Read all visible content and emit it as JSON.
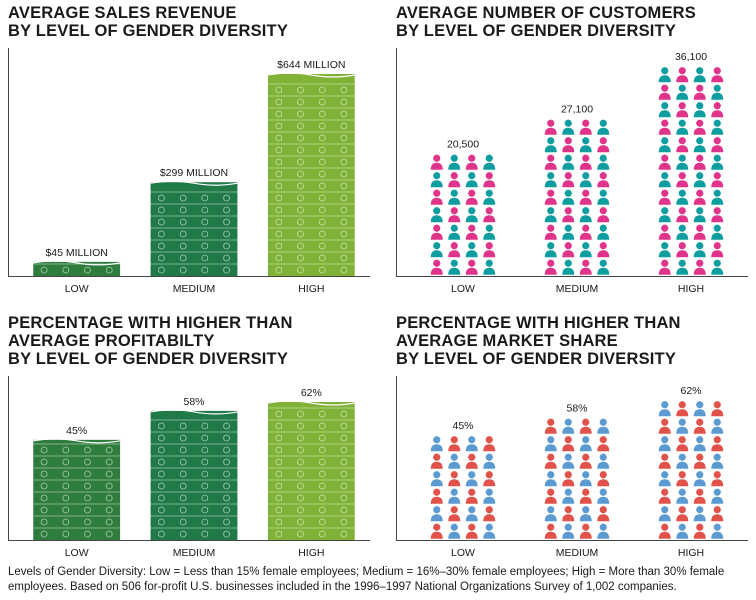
{
  "panels": [
    {
      "id": "sales",
      "title_lines": [
        "AVERAGE SALES REVENUE",
        "BY LEVEL OF GENDER DIVERSITY"
      ],
      "icon": "dollar-bill-icon"
    },
    {
      "id": "customers",
      "title_lines": [
        "AVERAGE NUMBER OF CUSTOMERS",
        "BY LEVEL OF GENDER DIVERSITY"
      ],
      "icon": "person-icon"
    },
    {
      "id": "profitability",
      "title_lines": [
        "PERCENTAGE WITH HIGHER THAN",
        "AVERAGE PROFITABILTY",
        "BY LEVEL OF GENDER DIVERSITY"
      ],
      "icon": "dollar-bill-icon"
    },
    {
      "id": "marketshare",
      "title_lines": [
        "PERCENTAGE WITH HIGHER THAN",
        "AVERAGE MARKET SHARE",
        "BY LEVEL OF GENDER DIVERSITY"
      ],
      "icon": "person-icon"
    }
  ],
  "chart_data": [
    {
      "type": "bar",
      "title": "AVERAGE SALES REVENUE BY LEVEL OF GENDER DIVERSITY",
      "categories": [
        "LOW",
        "MEDIUM",
        "HIGH"
      ],
      "values": [
        45,
        299,
        644
      ],
      "value_labels": [
        "$45 MILLION",
        "$299 MILLION",
        "$644 MILLION"
      ],
      "unit": "million USD",
      "colors": [
        "#2e7d3c",
        "#1f7a47",
        "#7fb236"
      ]
    },
    {
      "type": "bar",
      "title": "AVERAGE NUMBER OF CUSTOMERS BY LEVEL OF GENDER DIVERSITY",
      "categories": [
        "LOW",
        "MEDIUM",
        "HIGH"
      ],
      "values": [
        20500,
        27100,
        36100
      ],
      "value_labels": [
        "20,500",
        "27,100",
        "36,100"
      ],
      "colors": {
        "men": "#0f9ea0",
        "women": "#e0338a"
      }
    },
    {
      "type": "bar",
      "title": "PERCENTAGE WITH HIGHER THAN AVERAGE PROFITABILTY BY LEVEL OF GENDER DIVERSITY",
      "categories": [
        "LOW",
        "MEDIUM",
        "HIGH"
      ],
      "values": [
        45,
        58,
        62
      ],
      "value_labels": [
        "45%",
        "58%",
        "62%"
      ],
      "unit": "%",
      "colors": [
        "#2e7d3c",
        "#1f7a47",
        "#7fb236"
      ]
    },
    {
      "type": "bar",
      "title": "PERCENTAGE WITH HIGHER THAN AVERAGE MARKET SHARE BY LEVEL OF GENDER DIVERSITY",
      "categories": [
        "LOW",
        "MEDIUM",
        "HIGH"
      ],
      "values": [
        45,
        58,
        62
      ],
      "value_labels": [
        "45%",
        "58%",
        "62%"
      ],
      "unit": "%",
      "colors": {
        "men": "#5b9bd1",
        "women": "#e0524a"
      }
    }
  ],
  "footnote_lines": [
    "Levels of Gender Diversity: Low = Less than 15% female employees; Medium = 16%–30% female employees; High = More than 30% female",
    "employees. Based on 506 for-profit U.S. businesses included in the 1996–1997 National Organizations Survey of 1,002 companies."
  ]
}
